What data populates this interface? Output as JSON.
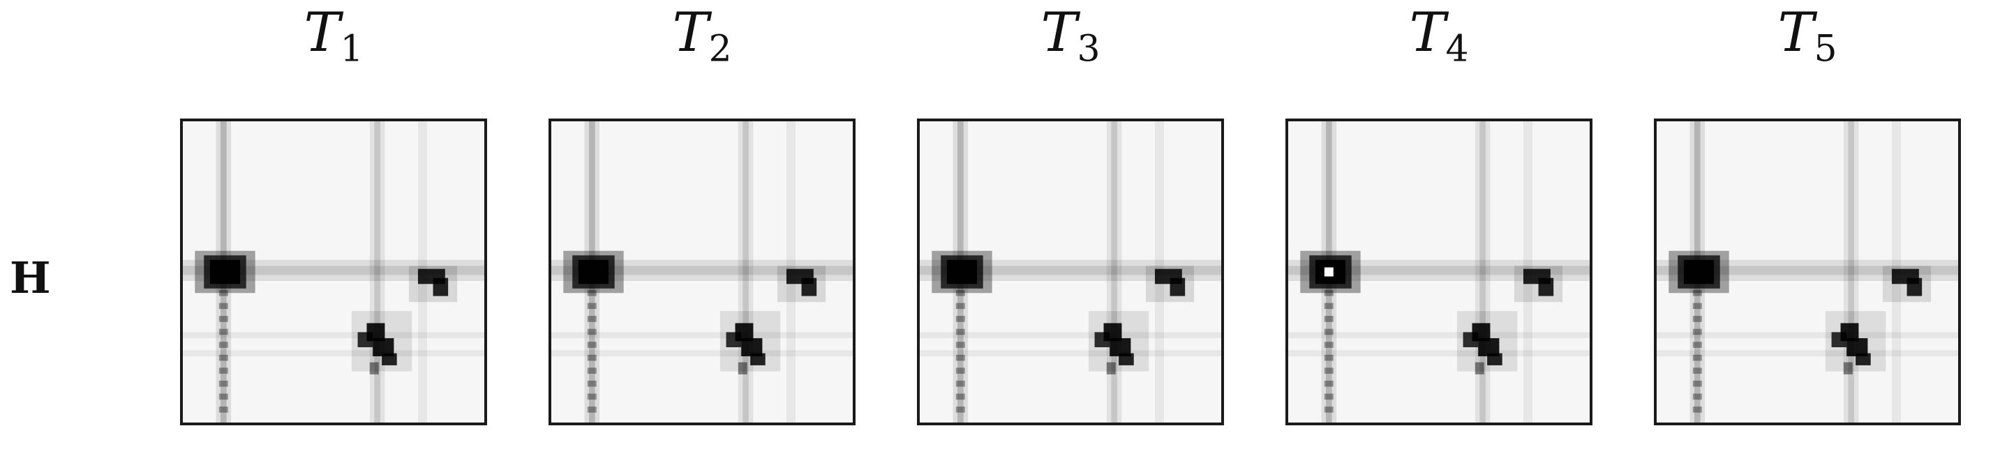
{
  "row_label": "H",
  "panels": [
    {
      "title_var": "T",
      "title_sub": "1"
    },
    {
      "title_var": "T",
      "title_sub": "2"
    },
    {
      "title_var": "T",
      "title_sub": "3"
    },
    {
      "title_var": "T",
      "title_sub": "4"
    },
    {
      "title_var": "T",
      "title_sub": "5"
    }
  ],
  "colormap": "grayscale (white = low, black = high)"
}
